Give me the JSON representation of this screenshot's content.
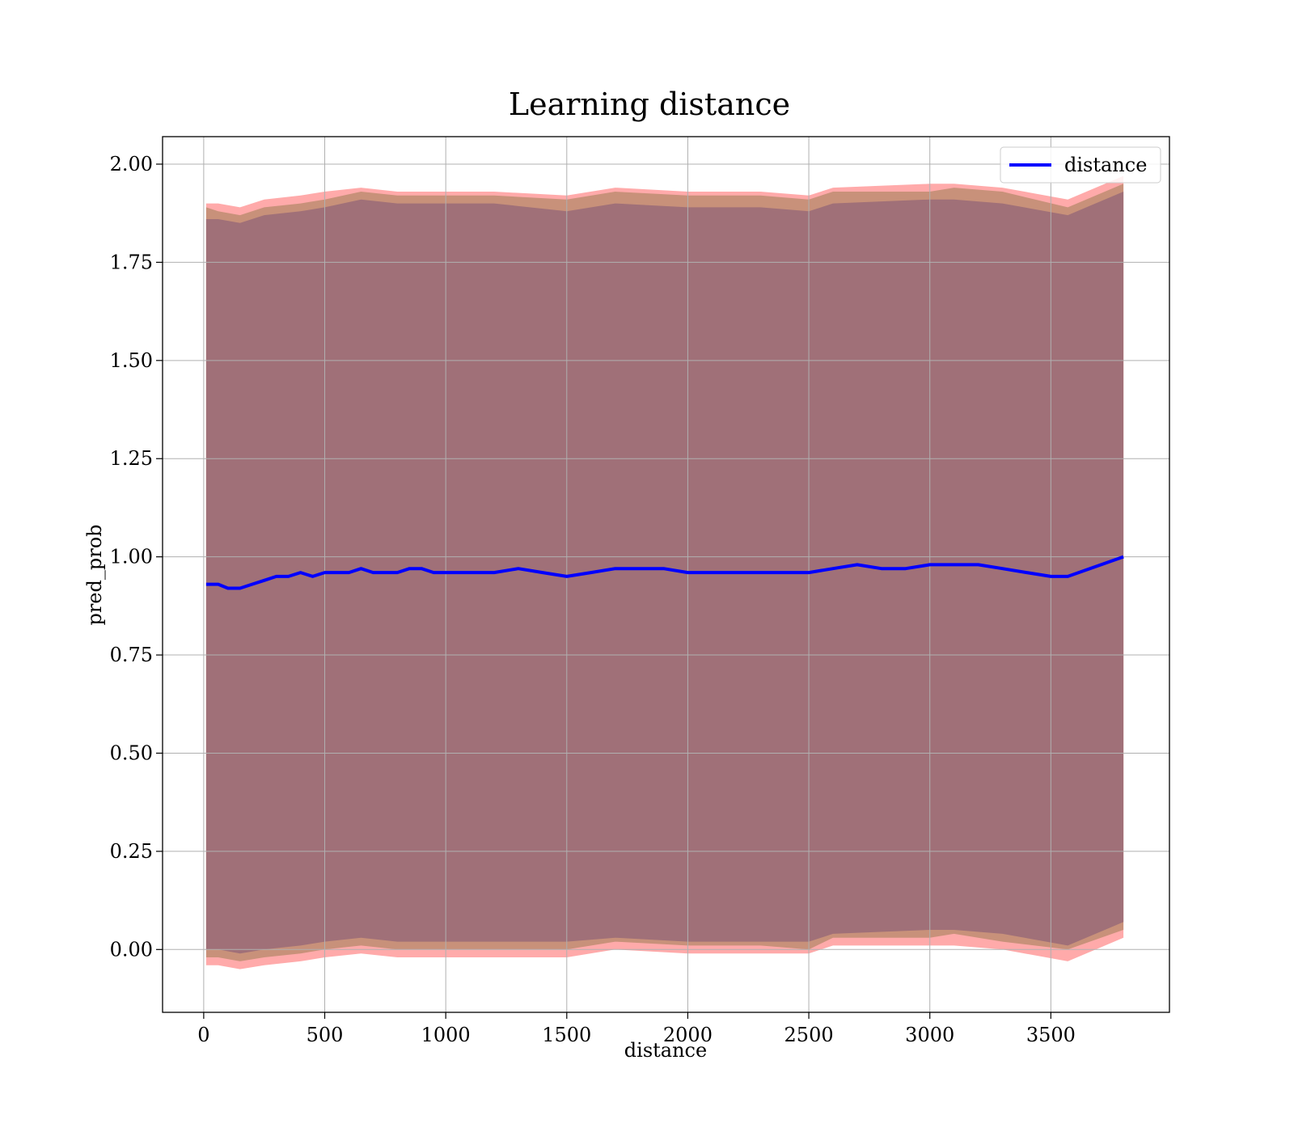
{
  "chart_data": {
    "type": "line",
    "title": "Learning distance",
    "xlabel": "distance",
    "ylabel": "pred_prob",
    "xlim": [
      -170,
      3990
    ],
    "ylim": [
      -0.16,
      2.07
    ],
    "xticks": [
      0,
      500,
      1000,
      1500,
      2000,
      2500,
      3000,
      3500
    ],
    "xtick_labels": [
      "0",
      "500",
      "1000",
      "1500",
      "2000",
      "2500",
      "3000",
      "3500"
    ],
    "yticks": [
      0.0,
      0.25,
      0.5,
      0.75,
      1.0,
      1.25,
      1.5,
      1.75,
      2.0
    ],
    "ytick_labels": [
      "0.00",
      "0.25",
      "0.50",
      "0.75",
      "1.00",
      "1.25",
      "1.50",
      "1.75",
      "2.00"
    ],
    "grid": true,
    "legend_position": "top-right",
    "colors": {
      "line": "#0000ff",
      "band_outer": "#ffaaaa",
      "band_middle": "#c8917a",
      "band_inner": "#a07078"
    },
    "series": [
      {
        "name": "distance",
        "x": [
          10,
          60,
          100,
          150,
          200,
          250,
          300,
          350,
          400,
          450,
          500,
          550,
          600,
          650,
          700,
          750,
          800,
          850,
          900,
          950,
          1000,
          1100,
          1200,
          1300,
          1400,
          1500,
          1600,
          1700,
          1800,
          1900,
          2000,
          2100,
          2200,
          2300,
          2400,
          2500,
          2600,
          2700,
          2800,
          2900,
          3000,
          3100,
          3200,
          3300,
          3400,
          3500,
          3570,
          3800
        ],
        "y": [
          0.93,
          0.93,
          0.92,
          0.92,
          0.93,
          0.94,
          0.95,
          0.95,
          0.96,
          0.95,
          0.96,
          0.96,
          0.96,
          0.97,
          0.96,
          0.96,
          0.96,
          0.97,
          0.97,
          0.96,
          0.96,
          0.96,
          0.96,
          0.97,
          0.96,
          0.95,
          0.96,
          0.97,
          0.97,
          0.97,
          0.96,
          0.96,
          0.96,
          0.96,
          0.96,
          0.96,
          0.97,
          0.98,
          0.97,
          0.97,
          0.98,
          0.98,
          0.98,
          0.97,
          0.96,
          0.95,
          0.95,
          1.0
        ]
      }
    ],
    "bands": [
      {
        "x": [
          10,
          60,
          150,
          250,
          400,
          500,
          650,
          800,
          1000,
          1200,
          1500,
          1700,
          2000,
          2300,
          2500,
          2600,
          3000,
          3100,
          3300,
          3570,
          3800
        ],
        "upper": [
          1.9,
          1.9,
          1.89,
          1.91,
          1.92,
          1.93,
          1.94,
          1.93,
          1.93,
          1.93,
          1.92,
          1.94,
          1.93,
          1.93,
          1.92,
          1.94,
          1.95,
          1.95,
          1.94,
          1.91,
          1.97
        ],
        "lower": [
          -0.04,
          -0.04,
          -0.05,
          -0.04,
          -0.03,
          -0.02,
          -0.01,
          -0.02,
          -0.02,
          -0.02,
          -0.02,
          0.0,
          -0.01,
          -0.01,
          -0.01,
          0.01,
          0.01,
          0.01,
          0.0,
          -0.03,
          0.03
        ]
      },
      {
        "x": [
          10,
          60,
          150,
          250,
          400,
          500,
          650,
          800,
          1000,
          1200,
          1500,
          1700,
          2000,
          2300,
          2500,
          2600,
          3000,
          3100,
          3300,
          3570,
          3800
        ],
        "upper": [
          1.89,
          1.88,
          1.87,
          1.89,
          1.9,
          1.91,
          1.93,
          1.92,
          1.92,
          1.92,
          1.91,
          1.93,
          1.92,
          1.92,
          1.91,
          1.93,
          1.93,
          1.94,
          1.93,
          1.89,
          1.95
        ],
        "lower": [
          -0.02,
          -0.02,
          -0.03,
          -0.02,
          -0.01,
          0.0,
          0.01,
          0.0,
          0.0,
          0.0,
          0.0,
          0.02,
          0.01,
          0.01,
          0.0,
          0.03,
          0.03,
          0.04,
          0.02,
          0.0,
          0.05
        ]
      },
      {
        "x": [
          10,
          60,
          150,
          250,
          400,
          500,
          650,
          800,
          1000,
          1200,
          1500,
          1700,
          2000,
          2300,
          2500,
          2600,
          3000,
          3100,
          3300,
          3570,
          3800
        ],
        "upper": [
          1.86,
          1.86,
          1.85,
          1.87,
          1.88,
          1.89,
          1.91,
          1.9,
          1.9,
          1.9,
          1.88,
          1.9,
          1.89,
          1.89,
          1.88,
          1.9,
          1.91,
          1.91,
          1.9,
          1.87,
          1.93
        ],
        "lower": [
          0.0,
          0.0,
          -0.01,
          0.0,
          0.01,
          0.02,
          0.03,
          0.02,
          0.02,
          0.02,
          0.02,
          0.03,
          0.02,
          0.02,
          0.02,
          0.04,
          0.05,
          0.05,
          0.04,
          0.01,
          0.07
        ]
      }
    ]
  }
}
